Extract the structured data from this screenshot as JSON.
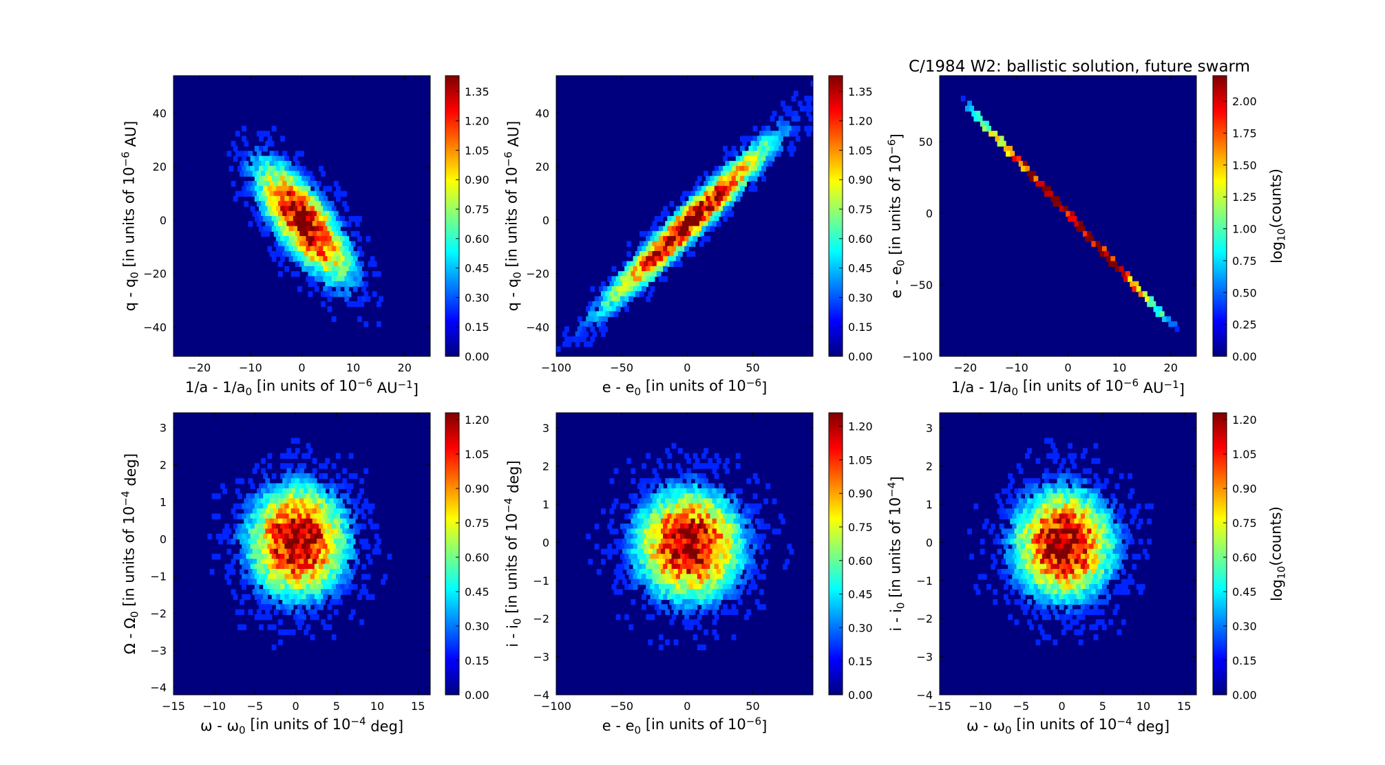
{
  "figure_title": "C/1984 W2:  ballistic solution, future swarm",
  "colormap": [
    "#00007f",
    "#0000ff",
    "#007fff",
    "#00ffff",
    "#7fff7f",
    "#ffff00",
    "#ff7f00",
    "#ff0000",
    "#7f0000"
  ],
  "background_color": "#00007f",
  "chart_data": [
    {
      "type": "heatmap",
      "panel": "top-left",
      "xlabel": "1/a - 1/a₀ [in units of 10⁻⁶ AU⁻¹]",
      "ylabel": "q - q₀ [in units of 10⁻⁶ AU]",
      "xlim": [
        -25,
        25
      ],
      "ylim": [
        -51,
        54
      ],
      "xticks": [
        -20,
        -10,
        0,
        10,
        20
      ],
      "yticks": [
        -40,
        -20,
        0,
        20,
        40
      ],
      "xtick_labels": [
        "−20",
        "−10",
        "0",
        "10",
        "20"
      ],
      "ytick_labels": [
        "−40",
        "−20",
        "0",
        "20",
        "40"
      ],
      "distribution": {
        "shape": "correlated",
        "center": [
          0,
          0
        ],
        "slope": -1.8,
        "major_half_extent": 24,
        "minor_sigma": 5
      },
      "colorbar": {
        "min": 0,
        "max": 1.43,
        "ticks": [
          "0.00",
          "0.15",
          "0.30",
          "0.45",
          "0.60",
          "0.75",
          "0.90",
          "1.05",
          "1.20",
          "1.35"
        ],
        "label": ""
      }
    },
    {
      "type": "heatmap",
      "panel": "top-middle",
      "xlabel": "e - e₀ [in units of 10⁻⁶]",
      "ylabel": "q - q₀ [in units of 10⁻⁶ AU]",
      "xlim": [
        -100,
        96
      ],
      "ylim": [
        -51,
        54
      ],
      "xticks": [
        -100,
        -50,
        0,
        50
      ],
      "yticks": [
        -40,
        -20,
        0,
        20,
        40
      ],
      "xtick_labels": [
        "−100",
        "−50",
        "0",
        "50"
      ],
      "ytick_labels": [
        "−40",
        "−20",
        "0",
        "20",
        "40"
      ],
      "distribution": {
        "shape": "correlated",
        "center": [
          0,
          0
        ],
        "slope": 0.47,
        "major_half_extent": 92,
        "minor_sigma": 5
      },
      "colorbar": {
        "min": 0,
        "max": 1.43,
        "ticks": [
          "0.00",
          "0.15",
          "0.30",
          "0.45",
          "0.60",
          "0.75",
          "0.90",
          "1.05",
          "1.20",
          "1.35"
        ],
        "label": ""
      }
    },
    {
      "type": "heatmap",
      "panel": "top-right",
      "xlabel": "1/a - 1/a₀ [in units of 10⁻⁶ AU⁻¹]",
      "ylabel": "e - e₀ [in units of 10⁻⁶]",
      "xlim": [
        -25,
        25
      ],
      "ylim": [
        -100,
        96
      ],
      "xticks": [
        -20,
        -10,
        0,
        10,
        20
      ],
      "yticks": [
        -100,
        -50,
        0,
        50
      ],
      "xtick_labels": [
        "−20",
        "−10",
        "0",
        "10",
        "20"
      ],
      "ytick_labels": [
        "−100",
        "−50",
        "0",
        "50"
      ],
      "distribution": {
        "shape": "line",
        "center": [
          0,
          0
        ],
        "slope": -3.85,
        "x_range": [
          -21,
          21
        ]
      },
      "colorbar": {
        "min": 0,
        "max": 2.2,
        "ticks": [
          "0.00",
          "0.25",
          "0.50",
          "0.75",
          "1.00",
          "1.25",
          "1.50",
          "1.75",
          "2.00"
        ],
        "label": "log₁₀(counts)"
      }
    },
    {
      "type": "heatmap",
      "panel": "bottom-left",
      "xlabel": "ω - ω₀ [in units of 10⁻⁴ deg]",
      "ylabel": "Ω - Ω₀ [in units of 10⁻⁴ deg]",
      "xlim": [
        -15,
        16.5
      ],
      "ylim": [
        -4.2,
        3.4
      ],
      "xticks": [
        -15,
        -10,
        -5,
        0,
        5,
        10,
        15
      ],
      "yticks": [
        -4,
        -3,
        -2,
        -1,
        0,
        1,
        2,
        3
      ],
      "xtick_labels": [
        "−15",
        "−10",
        "−5",
        "0",
        "5",
        "10",
        "15"
      ],
      "ytick_labels": [
        "−4",
        "−3",
        "−2",
        "−1",
        "0",
        "1",
        "2",
        "3"
      ],
      "distribution": {
        "shape": "gaussian",
        "center": [
          0,
          0
        ],
        "sigma": [
          4.2,
          1.05
        ]
      },
      "colorbar": {
        "min": 0,
        "max": 1.23,
        "ticks": [
          "0.00",
          "0.15",
          "0.30",
          "0.45",
          "0.60",
          "0.75",
          "0.90",
          "1.05",
          "1.20"
        ],
        "label": ""
      }
    },
    {
      "type": "heatmap",
      "panel": "bottom-middle",
      "xlabel": "e - e₀ [in units of 10⁻⁶]",
      "ylabel": "i - i₀ [in units of 10⁻⁴ deg]",
      "xlim": [
        -100,
        96
      ],
      "ylim": [
        -4.0,
        3.4
      ],
      "xticks": [
        -100,
        -50,
        0,
        50
      ],
      "yticks": [
        -4,
        -3,
        -2,
        -1,
        0,
        1,
        2,
        3
      ],
      "xtick_labels": [
        "−100",
        "−50",
        "0",
        "50"
      ],
      "ytick_labels": [
        "−4",
        "−3",
        "−2",
        "−1",
        "0",
        "1",
        "2",
        "3"
      ],
      "distribution": {
        "shape": "gaussian",
        "center": [
          0,
          0
        ],
        "sigma": [
          28,
          1.0
        ]
      },
      "colorbar": {
        "min": 0,
        "max": 1.26,
        "ticks": [
          "0.00",
          "0.15",
          "0.30",
          "0.45",
          "0.60",
          "0.75",
          "0.90",
          "1.05",
          "1.20"
        ],
        "label": ""
      }
    },
    {
      "type": "heatmap",
      "panel": "bottom-right",
      "xlabel": "ω - ω₀ [in units of 10⁻⁴ deg]",
      "ylabel": "i - i₀ [in units of 10⁻⁴]",
      "xlim": [
        -15,
        16.5
      ],
      "ylim": [
        -4.0,
        3.4
      ],
      "xticks": [
        -15,
        -10,
        -5,
        0,
        5,
        10,
        15
      ],
      "yticks": [
        -4,
        -3,
        -2,
        -1,
        0,
        1,
        2,
        3
      ],
      "xtick_labels": [
        "−15",
        "−10",
        "−5",
        "0",
        "5",
        "10",
        "15"
      ],
      "ytick_labels": [
        "−4",
        "−3",
        "−2",
        "−1",
        "0",
        "1",
        "2",
        "3"
      ],
      "distribution": {
        "shape": "gaussian",
        "center": [
          0,
          0
        ],
        "sigma": [
          4.2,
          1.0
        ]
      },
      "colorbar": {
        "min": 0,
        "max": 1.23,
        "ticks": [
          "0.00",
          "0.15",
          "0.30",
          "0.45",
          "0.60",
          "0.75",
          "0.90",
          "1.05",
          "1.20"
        ],
        "label": "log₁₀(counts)"
      }
    }
  ]
}
